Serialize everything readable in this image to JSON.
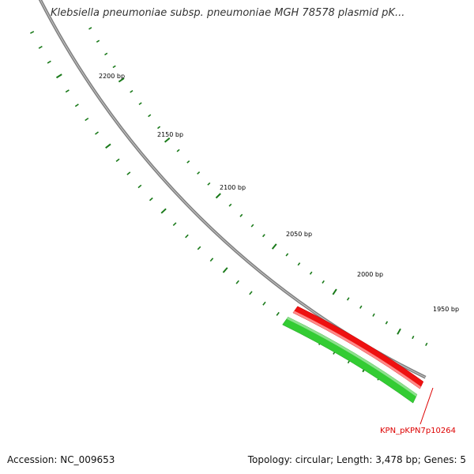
{
  "title": "Klebsiella pneumoniae subsp. pneumoniae MGH 78578 plasmid pK...",
  "accession": {
    "label": "Accession:",
    "value": "NC_009653"
  },
  "summary": {
    "topology_label": "Topology:",
    "topology": "circular",
    "length_label": "Length:",
    "length": "3,478 bp",
    "genes_label": "Genes:",
    "genes": "5"
  },
  "scale": {
    "unit": "bp",
    "labels": [
      "2200 bp",
      "2150 bp",
      "2100 bp",
      "2050 bp",
      "2000 bp",
      "1950 bp"
    ]
  },
  "gene": {
    "name": "KPN_pKPN7p10264"
  },
  "colors": {
    "backbone": "#808080",
    "ticks": "#1a7a1a",
    "forward_gene": "#ee1111",
    "reverse_gene": "#33cc33",
    "gene_label": "#dd0000"
  }
}
